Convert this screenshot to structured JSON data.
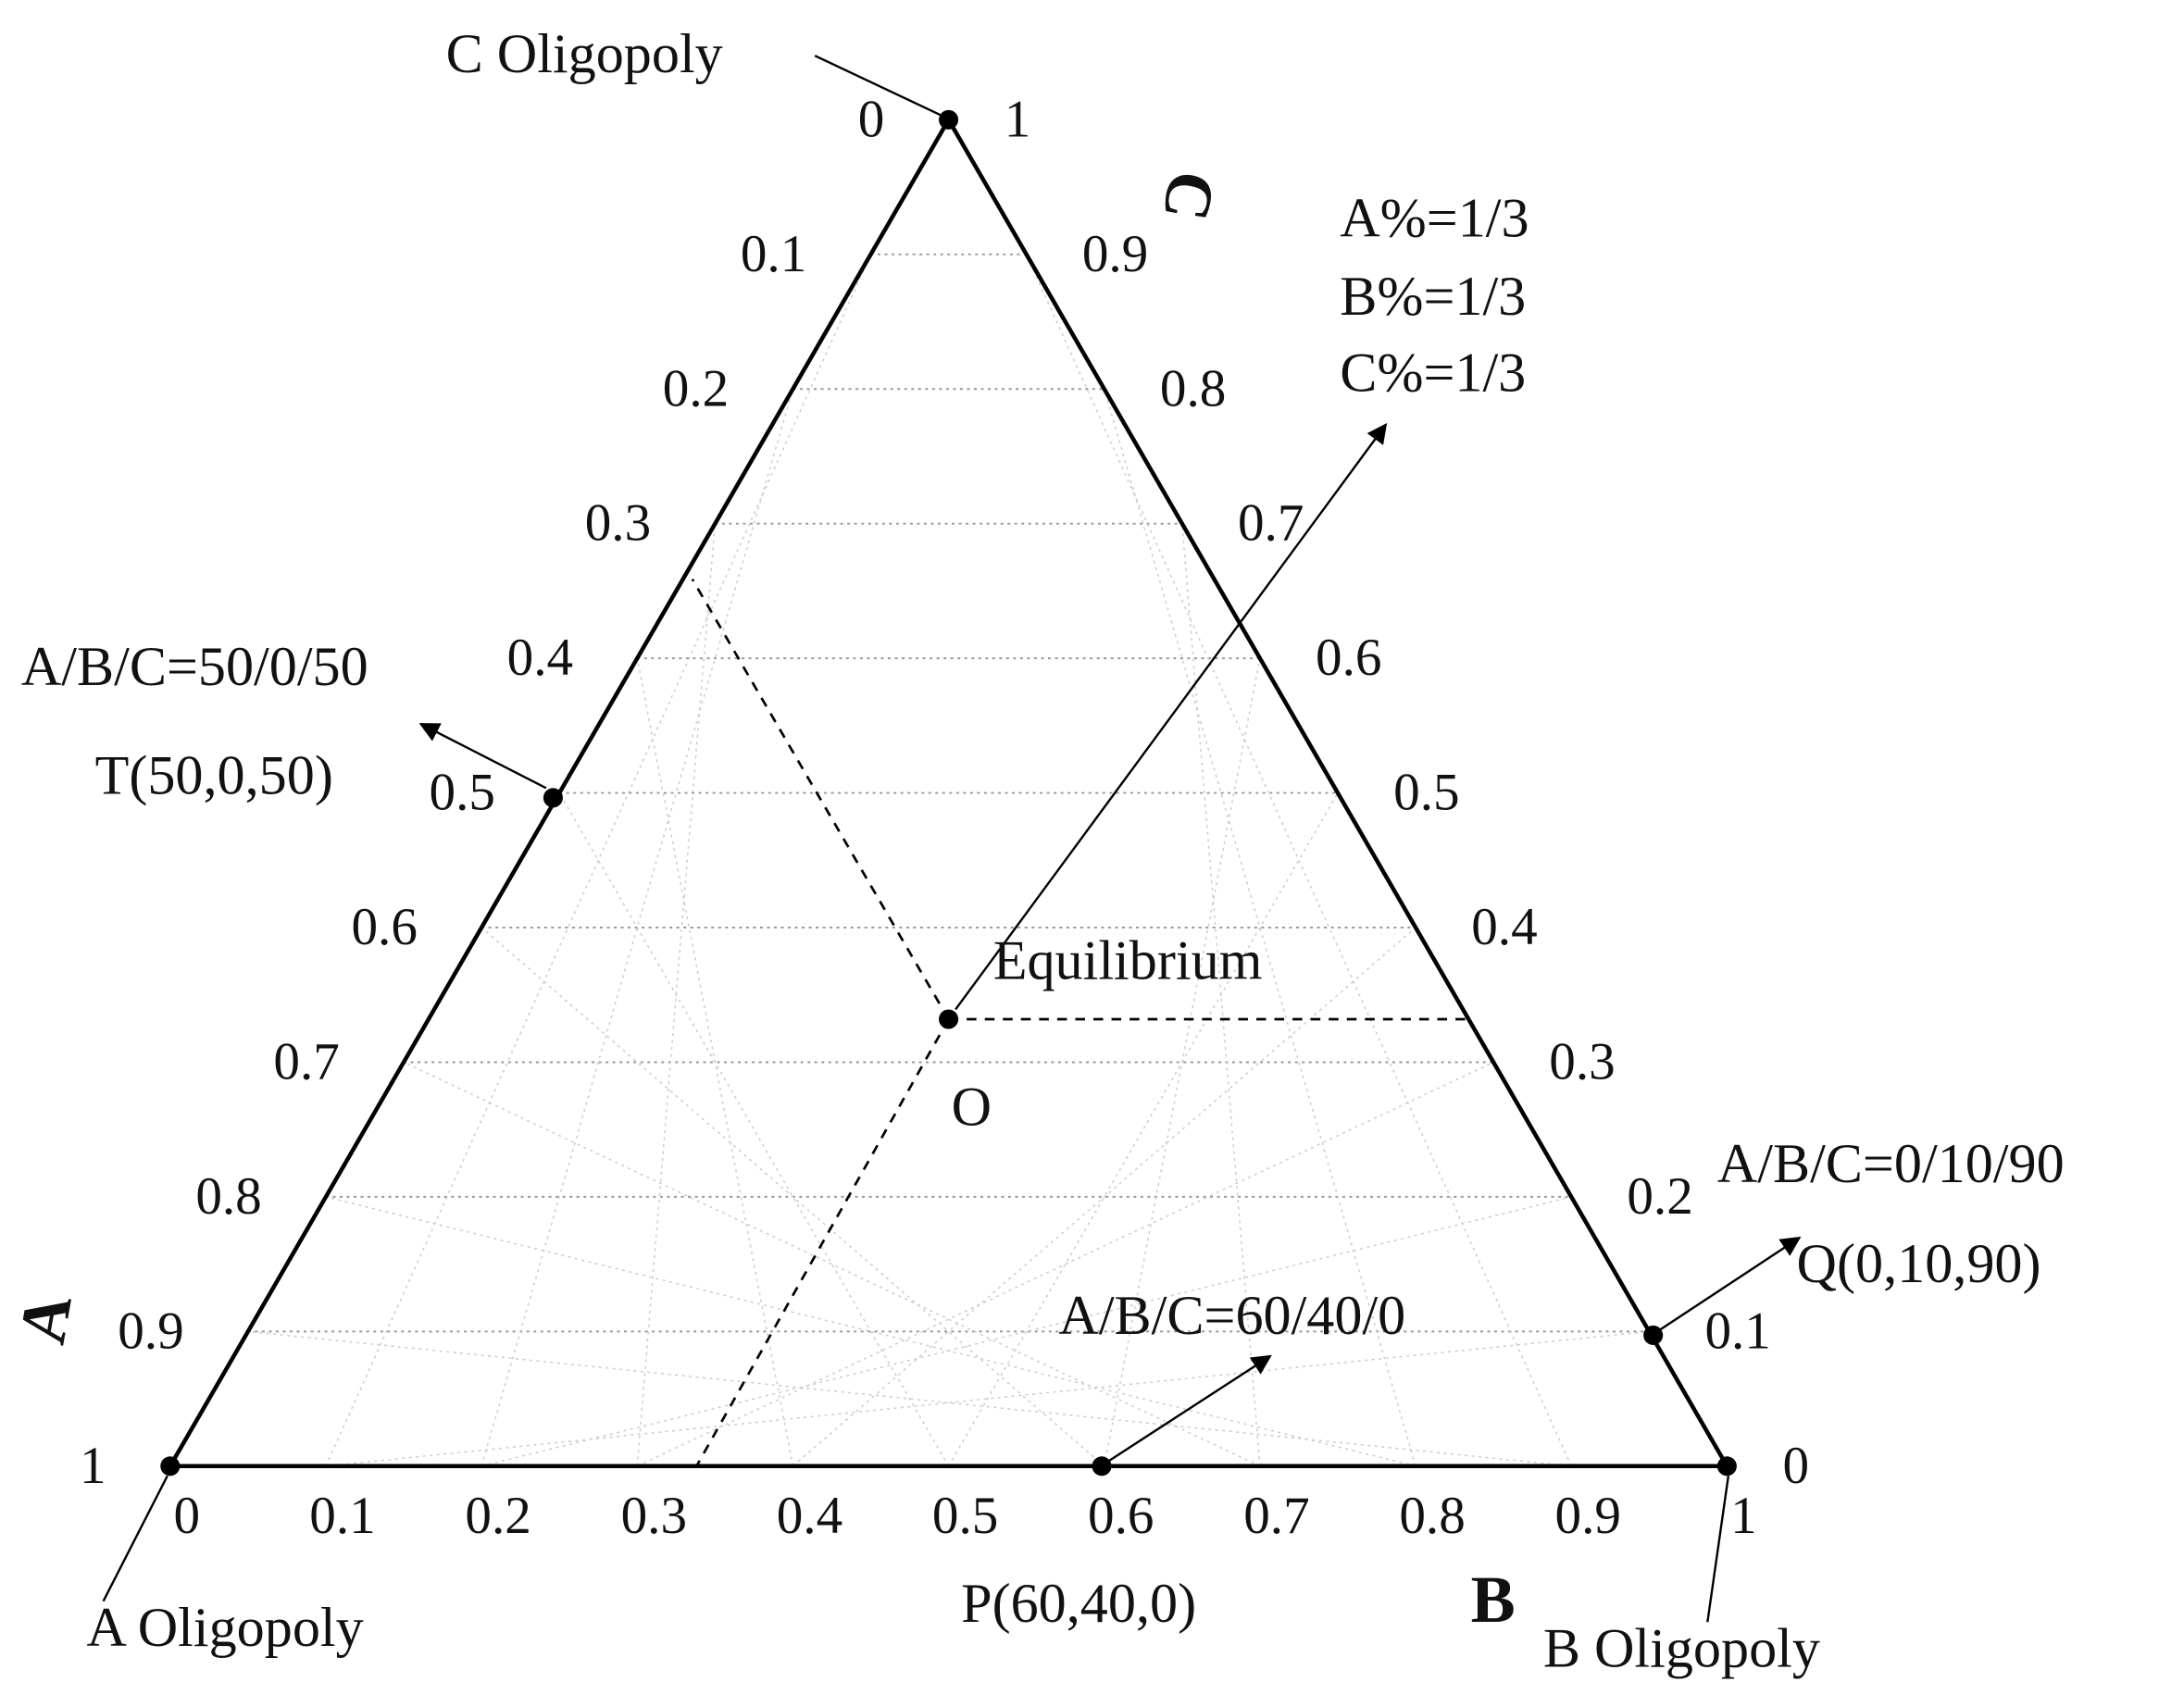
{
  "axes": {
    "a": {
      "name": "A",
      "ticks": [
        0,
        0.1,
        0.2,
        0.3,
        0.4,
        0.5,
        0.6,
        0.7,
        0.8,
        0.9,
        1
      ]
    },
    "b": {
      "name": "B",
      "ticks": [
        0,
        0.1,
        0.2,
        0.3,
        0.4,
        0.5,
        0.6,
        0.7,
        0.8,
        0.9,
        1
      ]
    },
    "c": {
      "name": "C",
      "ticks": [
        0,
        0.1,
        0.2,
        0.3,
        0.4,
        0.5,
        0.6,
        0.7,
        0.8,
        0.9,
        1
      ]
    }
  },
  "labels": {
    "c_oligopoly": "C Oligopoly",
    "a_oligopoly": "A Oligopoly",
    "b_oligopoly": "B Oligopoly",
    "equal_a": "A%=1/3",
    "equal_b": "B%=1/3",
    "equal_c": "C%=1/3",
    "t_ratio": "A/B/C=50/0/50",
    "t_point": "T(50,0,50)",
    "equilibrium": "Equilibrium",
    "o_point": "O",
    "q_ratio": "A/B/C=0/10/90",
    "q_point": "Q(0,10,90)",
    "p_ratio": "A/B/C=60/40/0",
    "p_point": "P(60,40,0)"
  }
}
